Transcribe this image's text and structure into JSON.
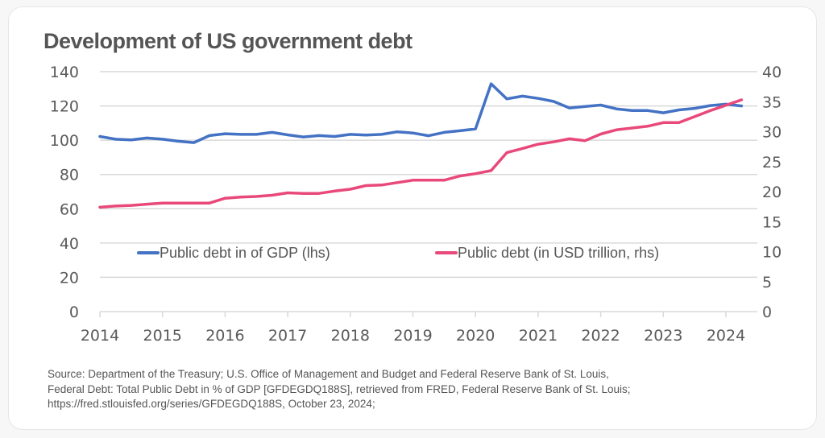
{
  "title": "Development of US government debt",
  "source_lines": [
    "Source: Department of the Treasury; U.S. Office of Management and Budget and Federal Reserve Bank of St. Louis,",
    "Federal Debt: Total Public Debt in % of GDP [GFDEGDQ188S], retrieved from FRED, Federal Reserve Bank of St. Louis;",
    "https://fred.stlouisfed.org/series/GFDEGDQ188S, October 23, 2024;"
  ],
  "chart_data": {
    "type": "line",
    "title": "Development of US government debt",
    "xlabel": "",
    "ylabel": "",
    "x_start": 2014.0,
    "x_step": 0.25,
    "xlim": [
      2014,
      2024.25
    ],
    "x_ticks": [
      "2014",
      "2015",
      "2016",
      "2017",
      "2018",
      "2019",
      "2020",
      "2021",
      "2022",
      "2023",
      "2024"
    ],
    "ylim_left": [
      0,
      140
    ],
    "y_ticks_left": [
      "0",
      "20",
      "40",
      "60",
      "80",
      "100",
      "120",
      "140"
    ],
    "ylim_right": [
      0,
      40
    ],
    "y_ticks_right": [
      "0",
      "5",
      "10",
      "15",
      "20",
      "25",
      "30",
      "35",
      "40"
    ],
    "grid": true,
    "legend_position": "inside-bottom",
    "series": [
      {
        "name": "Public debt in  of GDP (lhs)",
        "axis": "left",
        "color": "#4472c4",
        "values": [
          102.2,
          100.6,
          100.2,
          101.3,
          100.6,
          99.4,
          98.6,
          102.7,
          103.8,
          103.4,
          103.4,
          104.6,
          103.1,
          101.9,
          102.7,
          102.2,
          103.4,
          103.0,
          103.4,
          104.9,
          104.2,
          102.6,
          104.6,
          105.5,
          106.6,
          132.9,
          124.1,
          125.7,
          124.4,
          122.6,
          118.8,
          119.7,
          120.5,
          118.3,
          117.3,
          117.3,
          116.0,
          117.7,
          118.6,
          120.2,
          121.0,
          120.0
        ]
      },
      {
        "name": "Public debt (in USD trillion, rhs)",
        "axis": "right",
        "color": "#e8497a",
        "values": [
          17.4,
          17.6,
          17.7,
          17.9,
          18.1,
          18.1,
          18.1,
          18.1,
          18.9,
          19.1,
          19.2,
          19.4,
          19.8,
          19.7,
          19.7,
          20.1,
          20.4,
          21.0,
          21.1,
          21.5,
          21.9,
          21.9,
          21.9,
          22.6,
          23.0,
          23.5,
          26.5,
          27.2,
          27.9,
          28.3,
          28.8,
          28.5,
          29.6,
          30.3,
          30.6,
          30.9,
          31.5,
          31.5,
          32.5,
          33.5,
          34.4,
          35.3
        ]
      }
    ]
  }
}
